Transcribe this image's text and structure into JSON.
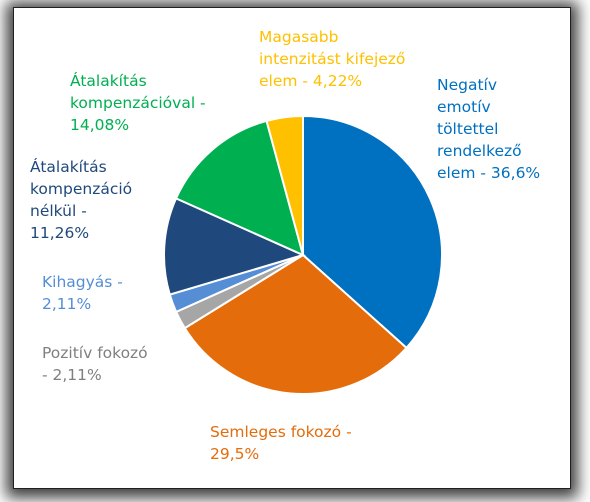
{
  "chart_data": {
    "type": "pie",
    "start_angle_deg": 0,
    "direction": "clockwise",
    "slices": [
      {
        "label_lines": [
          "Negatív",
          "emotív",
          "töltettel",
          "rendelkező",
          "elem - 36,6%"
        ],
        "value": 36.6,
        "color": "#0070C0"
      },
      {
        "label_lines": [
          "Semleges fokozó -",
          "29,5%"
        ],
        "value": 29.5,
        "color": "#E46C0A"
      },
      {
        "label_lines": [
          "Pozitív fokozó",
          "- 2,11%"
        ],
        "value": 2.11,
        "color": "#A6A6A6"
      },
      {
        "label_lines": [
          "Kihagyás -",
          "2,11%"
        ],
        "value": 2.11,
        "color": "#558ED5"
      },
      {
        "label_lines": [
          "Átalakítás",
          "kompenzáció",
          "nélkül -",
          "11,26%"
        ],
        "value": 11.26,
        "color": "#1F497D"
      },
      {
        "label_lines": [
          "Átalakítás",
          "kompenzációval -",
          "14,08%"
        ],
        "value": 14.08,
        "color": "#00B050"
      },
      {
        "label_lines": [
          "Magasabb",
          "intenzitást kifejező",
          "elem - 4,22%"
        ],
        "value": 4.22,
        "color": "#FFC000"
      }
    ],
    "label_colors": [
      "#0070C0",
      "#E46C0A",
      "#7F7F7F",
      "#558ED5",
      "#1F497D",
      "#00B050",
      "#FFC000"
    ],
    "slice_border_color": "#FFFFFF"
  }
}
